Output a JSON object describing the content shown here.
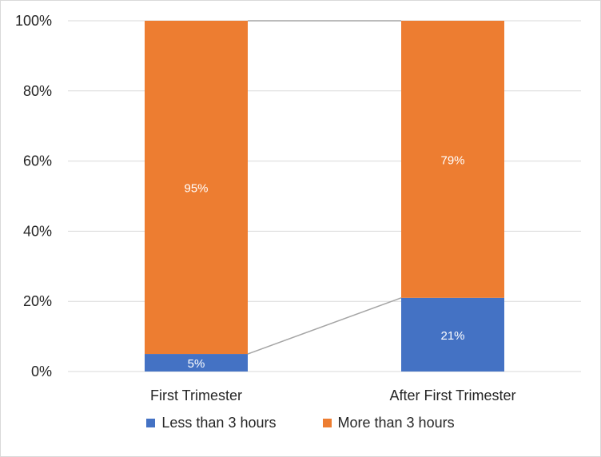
{
  "chart_data": {
    "type": "bar",
    "stacked": true,
    "normalized": true,
    "categories": [
      "First Trimester",
      "After First Trimester"
    ],
    "series": [
      {
        "name": "Less than 3 hours",
        "values": [
          5,
          21
        ],
        "labels": [
          "5%",
          "21%"
        ],
        "color": "#4472c4"
      },
      {
        "name": "More than 3 hours",
        "values": [
          95,
          79
        ],
        "labels": [
          "95%",
          "79%"
        ],
        "color": "#ed7d31"
      }
    ],
    "ylim": [
      0,
      100
    ],
    "yticks": [
      "0%",
      "20%",
      "40%",
      "60%",
      "80%",
      "100%"
    ],
    "series_lines": true,
    "grid": true,
    "legend_position": "bottom",
    "title": "",
    "xlabel": "",
    "ylabel": ""
  }
}
